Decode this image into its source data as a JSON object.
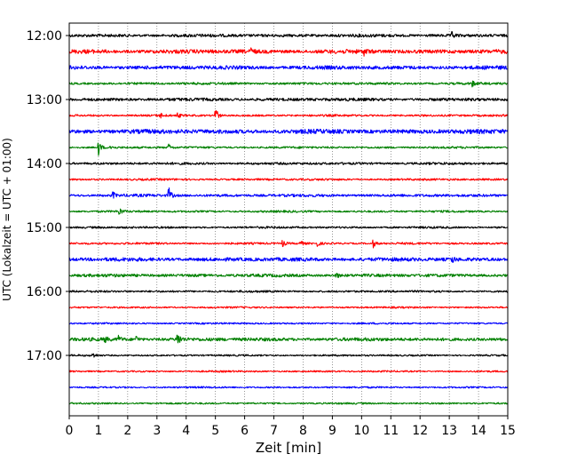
{
  "chart_data": {
    "type": "line",
    "subtype": "helicorder",
    "title": "",
    "xlabel": "Zeit  [min]",
    "ylabel": "UTC (Lokalzeit = UTC + 01:00)",
    "xlim": [
      0,
      15
    ],
    "x_ticks": [
      "0",
      "1",
      "2",
      "3",
      "4",
      "5",
      "6",
      "7",
      "8",
      "9",
      "10",
      "11",
      "12",
      "13",
      "14",
      "15"
    ],
    "y_tick_labels": [
      "12:00",
      "13:00",
      "14:00",
      "15:00",
      "16:00",
      "17:00"
    ],
    "grid": "vertical dotted",
    "trace_colors": [
      "#000000",
      "#ff0000",
      "#0000ff",
      "#008000"
    ],
    "traces": [
      {
        "start": "12:00",
        "color": "#000000",
        "noise": 0.9,
        "events": [
          {
            "t": 13.1,
            "amp": 0.5
          }
        ]
      },
      {
        "start": "12:15",
        "color": "#ff0000",
        "noise": 1.2,
        "events": [
          {
            "t": 6.2,
            "amp": 0.6
          },
          {
            "t": 10.1,
            "amp": 0.5
          }
        ]
      },
      {
        "start": "12:30",
        "color": "#0000ff",
        "noise": 1.1,
        "events": []
      },
      {
        "start": "12:45",
        "color": "#008000",
        "noise": 0.7,
        "events": [
          {
            "t": 13.8,
            "amp": 0.4
          }
        ]
      },
      {
        "start": "13:00",
        "color": "#000000",
        "noise": 0.9,
        "events": []
      },
      {
        "start": "13:15",
        "color": "#ff0000",
        "noise": 0.6,
        "events": [
          {
            "t": 3.1,
            "amp": 0.5
          },
          {
            "t": 3.7,
            "amp": 0.4
          },
          {
            "t": 5.0,
            "amp": 1.5
          }
        ]
      },
      {
        "start": "13:30",
        "color": "#0000ff",
        "noise": 1.3,
        "events": []
      },
      {
        "start": "13:45",
        "color": "#008000",
        "noise": 0.6,
        "events": [
          {
            "t": 1.0,
            "amp": 1.3
          },
          {
            "t": 1.4,
            "amp": 0.4
          },
          {
            "t": 3.4,
            "amp": 0.5
          }
        ]
      },
      {
        "start": "14:00",
        "color": "#000000",
        "noise": 0.7,
        "events": []
      },
      {
        "start": "14:15",
        "color": "#ff0000",
        "noise": 0.6,
        "events": []
      },
      {
        "start": "14:30",
        "color": "#0000ff",
        "noise": 0.8,
        "events": [
          {
            "t": 1.5,
            "amp": 0.5
          },
          {
            "t": 3.4,
            "amp": 1.3
          }
        ]
      },
      {
        "start": "14:45",
        "color": "#008000",
        "noise": 0.6,
        "events": [
          {
            "t": 1.7,
            "amp": 0.7
          }
        ]
      },
      {
        "start": "15:00",
        "color": "#000000",
        "noise": 0.6,
        "events": []
      },
      {
        "start": "15:15",
        "color": "#ff0000",
        "noise": 0.6,
        "events": [
          {
            "t": 7.3,
            "amp": 0.5
          },
          {
            "t": 7.9,
            "amp": 0.5
          },
          {
            "t": 8.5,
            "amp": 0.4
          },
          {
            "t": 10.4,
            "amp": 0.6
          }
        ]
      },
      {
        "start": "15:30",
        "color": "#0000ff",
        "noise": 1.1,
        "events": [
          {
            "t": 13.1,
            "amp": 0.5
          }
        ]
      },
      {
        "start": "15:45",
        "color": "#008000",
        "noise": 0.9,
        "events": [
          {
            "t": 9.1,
            "amp": 0.7
          }
        ]
      },
      {
        "start": "16:00",
        "color": "#000000",
        "noise": 0.6,
        "events": []
      },
      {
        "start": "16:15",
        "color": "#ff0000",
        "noise": 0.5,
        "events": []
      },
      {
        "start": "16:30",
        "color": "#0000ff",
        "noise": 0.5,
        "events": []
      },
      {
        "start": "16:45",
        "color": "#008000",
        "noise": 1.0,
        "events": [
          {
            "t": 1.2,
            "amp": 0.5
          },
          {
            "t": 1.7,
            "amp": 0.5
          },
          {
            "t": 2.3,
            "amp": 0.5
          },
          {
            "t": 3.7,
            "amp": 1.4
          }
        ]
      },
      {
        "start": "17:00",
        "color": "#000000",
        "noise": 0.5,
        "events": [
          {
            "t": 0.8,
            "amp": 0.5
          }
        ]
      },
      {
        "start": "17:15",
        "color": "#ff0000",
        "noise": 0.5,
        "events": []
      },
      {
        "start": "17:30",
        "color": "#0000ff",
        "noise": 0.5,
        "events": []
      },
      {
        "start": "17:45",
        "color": "#008000",
        "noise": 0.5,
        "events": []
      }
    ]
  }
}
